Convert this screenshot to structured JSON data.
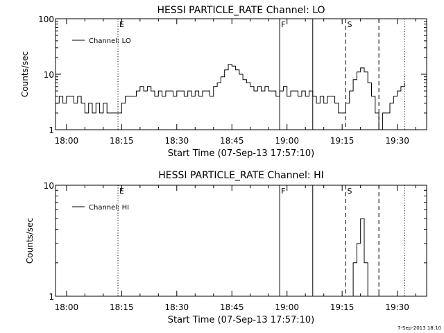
{
  "chart_data": [
    {
      "type": "line",
      "title": "HESSI PARTICLE_RATE Channel: LO",
      "xlabel": "Start Time (07-Sep-13 17:57:10)",
      "ylabel": "Counts/sec",
      "y_scale": "log",
      "xlim": [
        "17:57",
        "19:38"
      ],
      "ylim": [
        1,
        100
      ],
      "x_tick_labels": [
        "18:00",
        "18:15",
        "18:30",
        "18:45",
        "19:00",
        "19:15",
        "19:30"
      ],
      "y_tick_labels": [
        "1",
        "10",
        "100"
      ],
      "legend": {
        "position": "top-left",
        "entries": [
          "Channel: LO"
        ]
      },
      "color": "#000000",
      "markers": [
        {
          "time": "18:14",
          "style": "dotted",
          "label": "E"
        },
        {
          "time": "18:58",
          "style": "solid",
          "label": "F"
        },
        {
          "time": "19:07",
          "style": "solid",
          "label": ""
        },
        {
          "time": "19:16",
          "style": "dashed",
          "label": "S"
        },
        {
          "time": "19:25",
          "style": "dashed",
          "label": ""
        },
        {
          "time": "19:32",
          "style": "dotted",
          "label": ""
        }
      ],
      "series": [
        {
          "name": "Channel: LO",
          "points": [
            [
              "17:57",
              3
            ],
            [
              "17:58",
              4
            ],
            [
              "17:59",
              3
            ],
            [
              "18:00",
              4
            ],
            [
              "18:01",
              4
            ],
            [
              "18:02",
              3
            ],
            [
              "18:03",
              4
            ],
            [
              "18:04",
              3
            ],
            [
              "18:05",
              2
            ],
            [
              "18:06",
              3
            ],
            [
              "18:07",
              2
            ],
            [
              "18:08",
              3
            ],
            [
              "18:09",
              2
            ],
            [
              "18:10",
              3
            ],
            [
              "18:11",
              2
            ],
            [
              "18:12",
              2
            ],
            [
              "18:13",
              2
            ],
            [
              "18:14",
              2
            ],
            [
              "18:15",
              3
            ],
            [
              "18:16",
              4
            ],
            [
              "18:17",
              4
            ],
            [
              "18:18",
              4
            ],
            [
              "18:19",
              5
            ],
            [
              "18:20",
              6
            ],
            [
              "18:21",
              5
            ],
            [
              "18:22",
              6
            ],
            [
              "18:23",
              5
            ],
            [
              "18:24",
              4
            ],
            [
              "18:25",
              5
            ],
            [
              "18:26",
              4
            ],
            [
              "18:27",
              5
            ],
            [
              "18:28",
              5
            ],
            [
              "18:29",
              4
            ],
            [
              "18:30",
              5
            ],
            [
              "18:31",
              5
            ],
            [
              "18:32",
              4
            ],
            [
              "18:33",
              5
            ],
            [
              "18:34",
              4
            ],
            [
              "18:35",
              5
            ],
            [
              "18:36",
              4
            ],
            [
              "18:37",
              5
            ],
            [
              "18:38",
              5
            ],
            [
              "18:39",
              4
            ],
            [
              "18:40",
              6
            ],
            [
              "18:41",
              7
            ],
            [
              "18:42",
              9
            ],
            [
              "18:43",
              12
            ],
            [
              "18:44",
              15
            ],
            [
              "18:45",
              14
            ],
            [
              "18:46",
              12
            ],
            [
              "18:47",
              10
            ],
            [
              "18:48",
              8
            ],
            [
              "18:49",
              7
            ],
            [
              "18:50",
              6
            ],
            [
              "18:51",
              5
            ],
            [
              "18:52",
              6
            ],
            [
              "18:53",
              5
            ],
            [
              "18:54",
              6
            ],
            [
              "18:55",
              5
            ],
            [
              "18:56",
              5
            ],
            [
              "18:57",
              4
            ],
            [
              "18:58",
              5
            ],
            [
              "18:59",
              6
            ],
            [
              "19:00",
              4
            ],
            [
              "19:01",
              5
            ],
            [
              "19:02",
              5
            ],
            [
              "19:03",
              4
            ],
            [
              "19:04",
              5
            ],
            [
              "19:05",
              4
            ],
            [
              "19:06",
              5
            ],
            [
              "19:07",
              4
            ],
            [
              "19:08",
              3
            ],
            [
              "19:09",
              4
            ],
            [
              "19:10",
              3
            ],
            [
              "19:11",
              4
            ],
            [
              "19:12",
              4
            ],
            [
              "19:13",
              3
            ],
            [
              "19:14",
              2
            ],
            [
              "19:15",
              2
            ],
            [
              "19:16",
              3
            ],
            [
              "19:17",
              5
            ],
            [
              "19:18",
              8
            ],
            [
              "19:19",
              11
            ],
            [
              "19:20",
              13
            ],
            [
              "19:21",
              11
            ],
            [
              "19:22",
              7
            ],
            [
              "19:23",
              4
            ],
            [
              "19:24",
              2
            ],
            [
              "19:25",
              1
            ],
            [
              "19:26",
              2
            ],
            [
              "19:27",
              2
            ],
            [
              "19:28",
              3
            ],
            [
              "19:29",
              4
            ],
            [
              "19:30",
              5
            ],
            [
              "19:31",
              6
            ],
            [
              "19:32",
              7
            ]
          ]
        }
      ]
    },
    {
      "type": "line",
      "title": "HESSI PARTICLE_RATE Channel: HI",
      "xlabel": "Start Time (07-Sep-13 17:57:10)",
      "ylabel": "Counts/sec",
      "y_scale": "log",
      "xlim": [
        "17:57",
        "19:38"
      ],
      "ylim": [
        1,
        10
      ],
      "x_tick_labels": [
        "18:00",
        "18:15",
        "18:30",
        "18:45",
        "19:00",
        "19:15",
        "19:30"
      ],
      "y_tick_labels": [
        "1",
        "10"
      ],
      "legend": {
        "position": "top-left",
        "entries": [
          "Channel: HI"
        ]
      },
      "color": "#000000",
      "markers": [
        {
          "time": "18:14",
          "style": "dotted",
          "label": "E"
        },
        {
          "time": "18:58",
          "style": "solid",
          "label": "F"
        },
        {
          "time": "19:07",
          "style": "solid",
          "label": ""
        },
        {
          "time": "19:16",
          "style": "dashed",
          "label": "S"
        },
        {
          "time": "19:25",
          "style": "dashed",
          "label": ""
        },
        {
          "time": "19:32",
          "style": "dotted",
          "label": ""
        }
      ],
      "series": [
        {
          "name": "Channel: HI",
          "points": [
            [
              "19:18",
              1
            ],
            [
              "19:18",
              2
            ],
            [
              "19:19",
              2
            ],
            [
              "19:19",
              3
            ],
            [
              "19:20",
              3
            ],
            [
              "19:20",
              4
            ],
            [
              "19:20",
              5
            ],
            [
              "19:21",
              4
            ],
            [
              "19:21",
              3
            ],
            [
              "19:21",
              2
            ],
            [
              "19:22",
              2
            ],
            [
              "19:22",
              1
            ]
          ]
        }
      ]
    }
  ],
  "footer": {
    "stamp": "7-Sep-2013 18:10"
  }
}
